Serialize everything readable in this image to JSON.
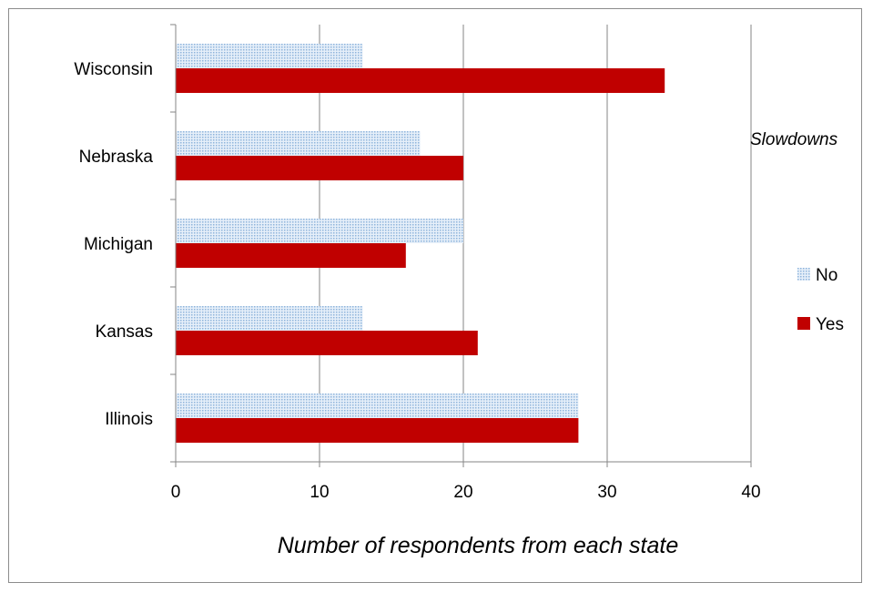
{
  "chart_data": {
    "type": "bar",
    "orientation": "horizontal",
    "categories": [
      "Illinois",
      "Kansas",
      "Michigan",
      "Nebraska",
      "Wisconsin"
    ],
    "series": [
      {
        "name": "No",
        "values": [
          28,
          13,
          20,
          17,
          13
        ],
        "color": "#c9dcef",
        "pattern": "dotted-light-blue"
      },
      {
        "name": "Yes",
        "values": [
          28,
          21,
          16,
          20,
          34
        ],
        "color": "#c00000"
      }
    ],
    "xlim": [
      0,
      40
    ],
    "xticks": [
      0,
      10,
      20,
      30,
      40
    ],
    "xlabel": "Number of respondents from each state",
    "legend_title": "Slowdowns",
    "legend_position": "right",
    "grid": "vertical major gridlines"
  }
}
